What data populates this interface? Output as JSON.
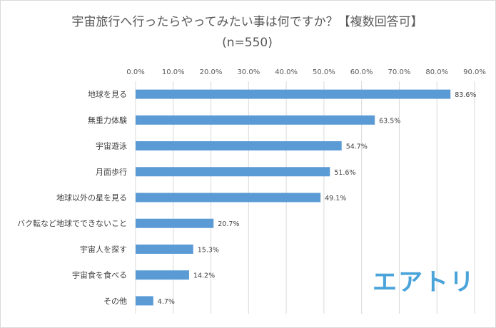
{
  "chart_data": {
    "type": "bar",
    "orientation": "horizontal",
    "title": "宇宙旅行へ行ったらやってみたい事は何ですか？【複数回答可】",
    "subtitle": "(n=550)",
    "categories": [
      "地球を見る",
      "無重力体験",
      "宇宙遊泳",
      "月面歩行",
      "地球以外の星を見る",
      "バク転など地球でできないこと",
      "宇宙人を探す",
      "宇宙食を食べる",
      "その他"
    ],
    "values": [
      83.6,
      63.5,
      54.7,
      51.6,
      49.1,
      20.7,
      15.3,
      14.2,
      4.7
    ],
    "value_labels": [
      "83.6%",
      "63.5%",
      "54.7%",
      "51.6%",
      "49.1%",
      "20.7%",
      "15.3%",
      "14.2%",
      "4.7%"
    ],
    "xlim": [
      0,
      90
    ],
    "x_ticks": [
      "0.0%",
      "10.0%",
      "20.0%",
      "30.0%",
      "40.0%",
      "50.0%",
      "60.0%",
      "70.0%",
      "80.0%",
      "90.0%"
    ],
    "tick_values": [
      0,
      10,
      20,
      30,
      40,
      50,
      60,
      70,
      80,
      90
    ],
    "grid": true,
    "bar_color": "#5b9bd5",
    "axis_position": "top"
  },
  "logo": {
    "text": "エアトリ",
    "color": "#4aa3d9"
  }
}
